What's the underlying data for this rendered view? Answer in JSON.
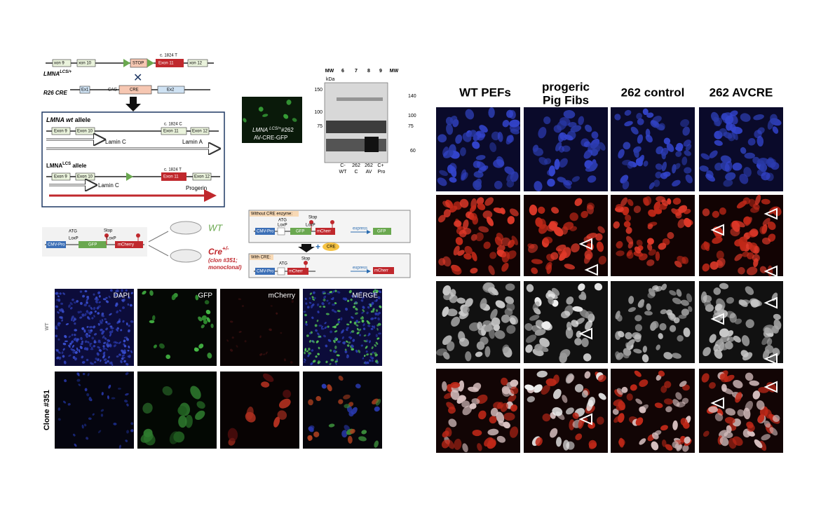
{
  "construct": {
    "lcs": {
      "exons": [
        "xon 9",
        "xon 10",
        "Exon 11",
        "xon 12"
      ],
      "stop": "STOP",
      "mutation": "c. 1824 T",
      "name": "LMNA",
      "name_sup": "LCS/+"
    },
    "r26": {
      "name": "R26 CRE",
      "ex1": "Ex1",
      "promoter": "CAG",
      "cre": "CRE",
      "ex2": "Ex2"
    },
    "wt_allele": {
      "title_italic": "LMNA wt",
      "title_rest": "allele",
      "exons": [
        "Exon 9",
        "Exon 10",
        "Exon 11",
        "Exon 12"
      ],
      "mutation": "c. 1824 C",
      "transcripts": [
        "Lamin C",
        "Lamin A"
      ]
    },
    "lcs_allele": {
      "title": "LMNA",
      "title_sup": "LCS",
      "title_rest": "allele",
      "exons": [
        "Exon 9",
        "Exon 10",
        "Exon 11",
        "Exon 12"
      ],
      "mutation": "c. 1824 T",
      "transcripts": [
        "Lamin C",
        "Progerin"
      ]
    }
  },
  "gfp_image": {
    "name": "LMNA",
    "name_sup": "LCS/+",
    "clone": "#262",
    "line2": "AV-CRE-GFP"
  },
  "western_blot": {
    "header": [
      "MW",
      "6",
      "7",
      "8",
      "9",
      "MW"
    ],
    "unit": "kDa",
    "left_markers": [
      "150",
      "100",
      "75"
    ],
    "right_markers": [
      "140",
      "100",
      "75",
      "60"
    ],
    "lane_labels_1": [
      "C-",
      "262",
      "262",
      "C+"
    ],
    "lane_labels_2": [
      "WT",
      "C",
      "AV",
      "Pro"
    ]
  },
  "reporter": {
    "vector": [
      "CMV-Pro",
      "ATG",
      "LoxP",
      "GFP",
      "Stop",
      "LoxP",
      "mCherry"
    ],
    "wt": "WT",
    "cre": "Cre",
    "cre_sup": "+/-",
    "clone_1": "(clon #351;",
    "clone_2": "monoclonal)"
  },
  "cre_scheme": {
    "without": {
      "title": "Without CRE enzyme:",
      "parts": [
        "CMV-Pro",
        "ATG",
        "LoxP",
        "GFP",
        "LoxP",
        "Stop",
        "mCherr"
      ],
      "express": "express",
      "product": "GFP"
    },
    "enzyme": "CRE",
    "with": {
      "title": "With CRE:",
      "parts": [
        "CMV-Pro",
        "ATG",
        "mCherr",
        "Stop"
      ],
      "express": "express",
      "product": "mCherr"
    }
  },
  "microscopy": {
    "channels": [
      "DAPI",
      "GFP",
      "mCherry",
      "MERGE"
    ],
    "rows": [
      "WT",
      "Clone #351"
    ]
  },
  "immunofluorescence": {
    "columns": [
      [
        "WT PEFs"
      ],
      [
        "progeric",
        "Pig Fibs"
      ],
      [
        "262 control"
      ],
      [
        "262 AVCRE"
      ]
    ]
  }
}
